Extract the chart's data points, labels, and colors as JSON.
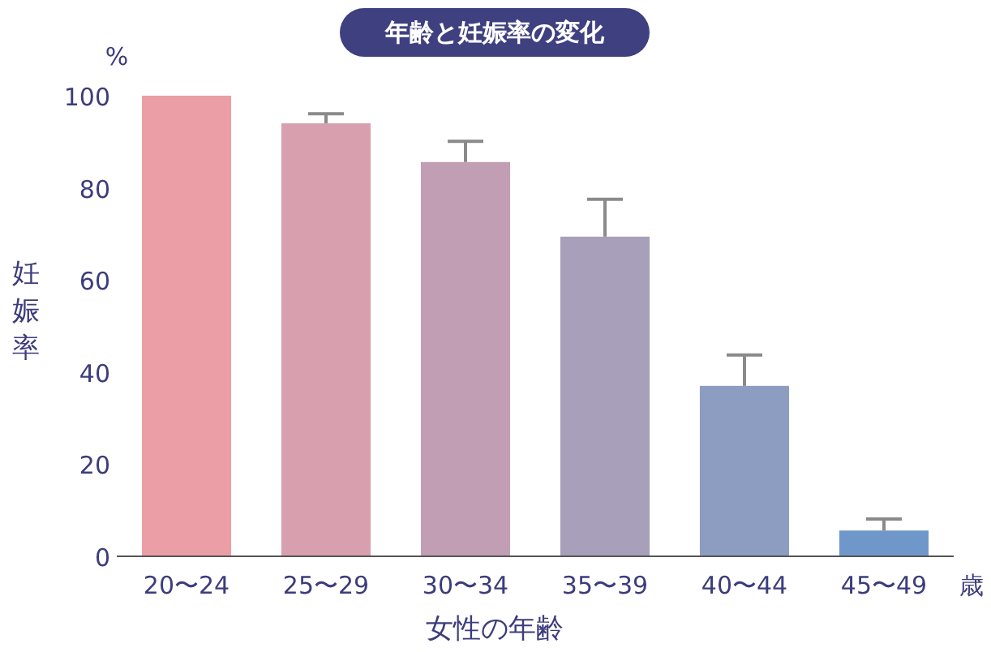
{
  "chart_data": {
    "type": "bar",
    "title": "年齢と妊娠率の変化",
    "xlabel": "女性の年齢",
    "ylabel": "妊娠率",
    "annotations": [
      "%",
      "歳"
    ],
    "categories": [
      "20〜24",
      "25〜29",
      "30〜34",
      "35〜39",
      "40〜44",
      "45〜49"
    ],
    "values": [
      100,
      94,
      85.6,
      69.4,
      37,
      5.6
    ],
    "errors": [
      null,
      [
        94,
        96.1
      ],
      [
        85.6,
        90.1
      ],
      [
        69.4,
        77.5
      ],
      [
        37,
        43.7
      ],
      [
        5.6,
        8.1
      ]
    ],
    "colors": [
      "#eb9ea6",
      "#d8a0ae",
      "#c19eb4",
      "#a89fba",
      "#8d9dc1",
      "#6f97c9"
    ],
    "ylim": [
      0,
      100
    ],
    "yticks": [
      0,
      20,
      40,
      60,
      80,
      100
    ]
  }
}
